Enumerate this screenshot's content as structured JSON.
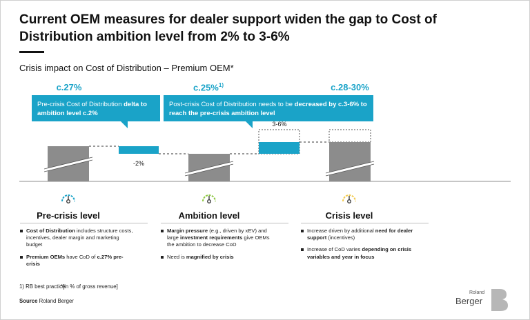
{
  "title": "Current OEM measures for dealer support widen the gap to Cost of Distribution ambition level from 2% to 3-6%",
  "subtitle": "Crisis impact on Cost of Distribution – Premium OEM*",
  "percentages": {
    "pre_crisis": "c.27%",
    "ambition": "c.25%",
    "ambition_sup": "1)",
    "crisis": "c.28-30%"
  },
  "callouts": {
    "left_normal": "Pre-crisis Cost of Distribution ",
    "left_bold": "delta to ambition level c.2%",
    "right_normal": "Post-crisis Cost of Distribution needs to be ",
    "right_bold": "decreased by c.3-6% to reach the pre-crisis ambition level"
  },
  "bar_labels": {
    "delta_down": "-2%",
    "delta_up": "3-6%"
  },
  "levels": [
    {
      "title": "Pre-crisis level",
      "gauge_color": "#1aa3c8",
      "bullets": [
        {
          "bold": "Cost of Distribution",
          "text": " includes structure costs, incentives, dealer margin and marketing budget",
          "bold2": "",
          "text2": ""
        },
        {
          "bold": "Premium OEMs",
          "text": " have CoD of ",
          "bold2": "c.27% pre-crisis",
          "text2": ""
        }
      ]
    },
    {
      "title": "Ambition level",
      "gauge_color": "#8cc63f",
      "bullets": [
        {
          "bold": "Margin pressure",
          "text": " (e.g., driven by xEV) and large ",
          "bold2": "investment requirements",
          "text2": " give OEMs the ambition to decrease CoD"
        },
        {
          "bold": "",
          "text": "Need is ",
          "bold2": "magnified by crisis",
          "text2": ""
        }
      ]
    },
    {
      "title": "Crisis level",
      "gauge_color": "#f2c94c",
      "bullets": [
        {
          "bold": "",
          "text": "Increase driven by additional ",
          "bold2": "need for dealer support",
          "text2": " (incentives)"
        },
        {
          "bold": "",
          "text": "Increase of CoD varies ",
          "bold2": "depending on crisis variables and year in focus",
          "text2": ""
        }
      ]
    }
  ],
  "footnote_1": "1) RB best practice",
  "footnote_2": "*[in % of gross revenue]",
  "source_label": "Source",
  "source_value": "Roland Berger",
  "logo_small": "Roland",
  "logo_big": "Berger",
  "colors": {
    "accent": "#1aa3c8",
    "bar_gray": "#8c8c8c"
  }
}
